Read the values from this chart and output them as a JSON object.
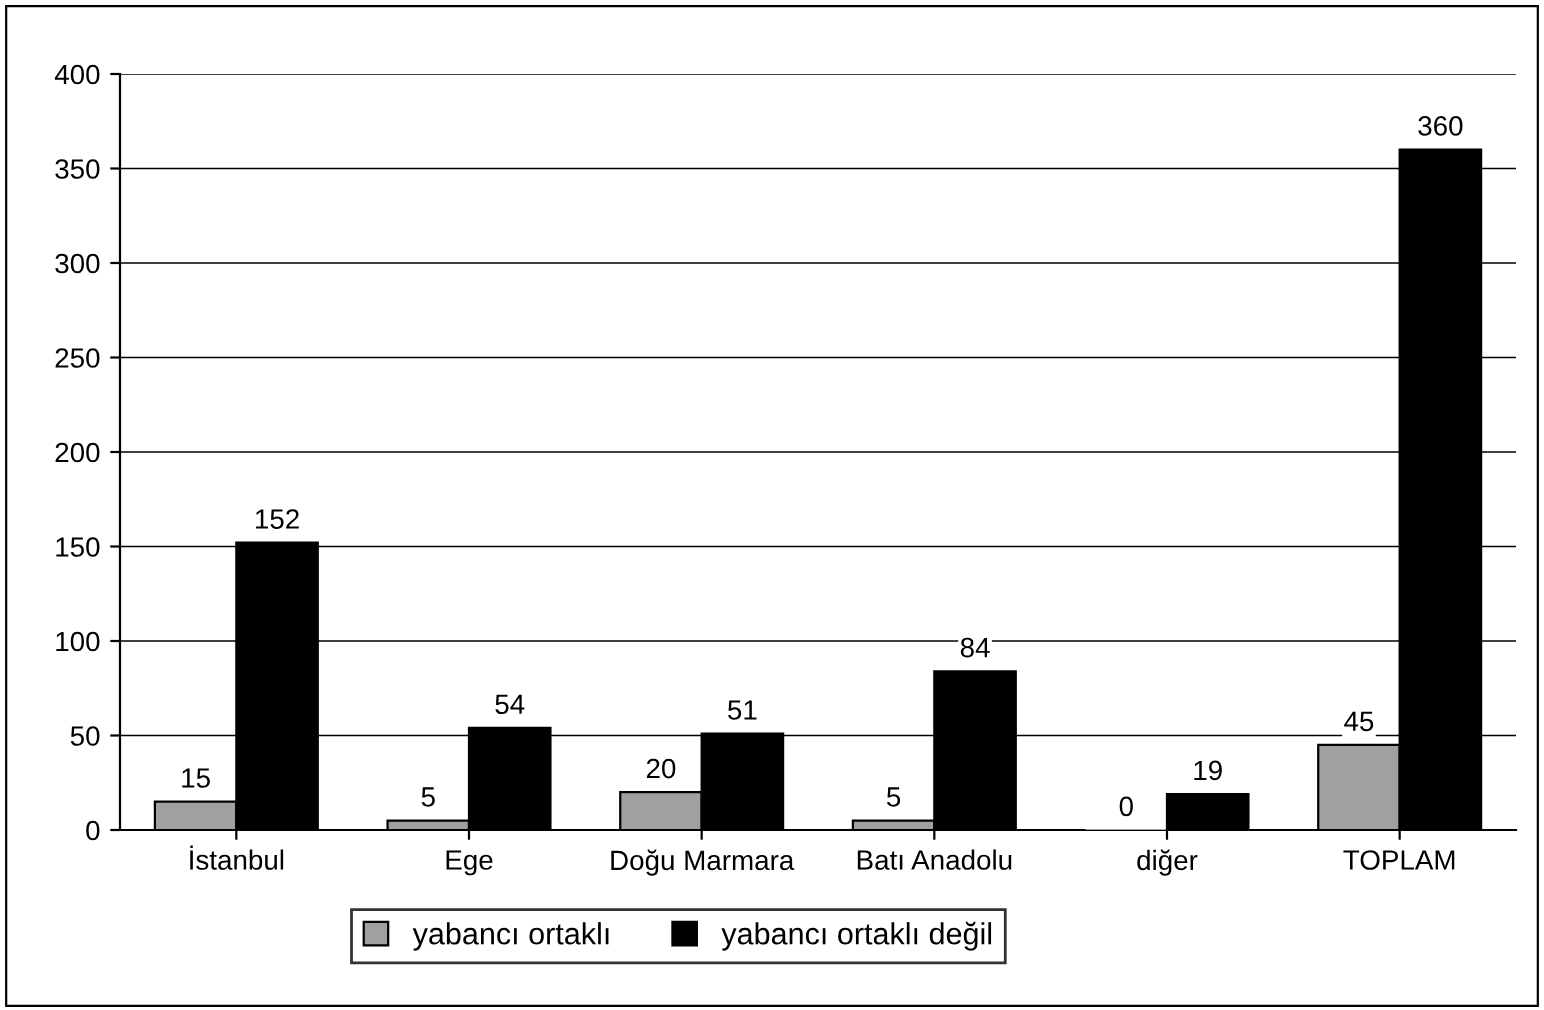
{
  "chart_data": {
    "type": "bar",
    "categories": [
      "İstanbul",
      "Ege",
      "Doğu Marmara",
      "Batı Anadolu",
      "diğer",
      "TOPLAM"
    ],
    "series": [
      {
        "name": "yabancı ortaklı",
        "color": "#a0a0a0",
        "values": [
          15,
          5,
          20,
          5,
          0,
          45
        ]
      },
      {
        "name": "yabancı ortaklı değil",
        "color": "#000000",
        "values": [
          152,
          54,
          51,
          84,
          19,
          360
        ]
      }
    ],
    "ylim": [
      0,
      400
    ],
    "yticks": [
      0,
      50,
      100,
      150,
      200,
      250,
      300,
      350,
      400
    ],
    "grid": "y",
    "legend": "bottom",
    "data_labels": true
  }
}
